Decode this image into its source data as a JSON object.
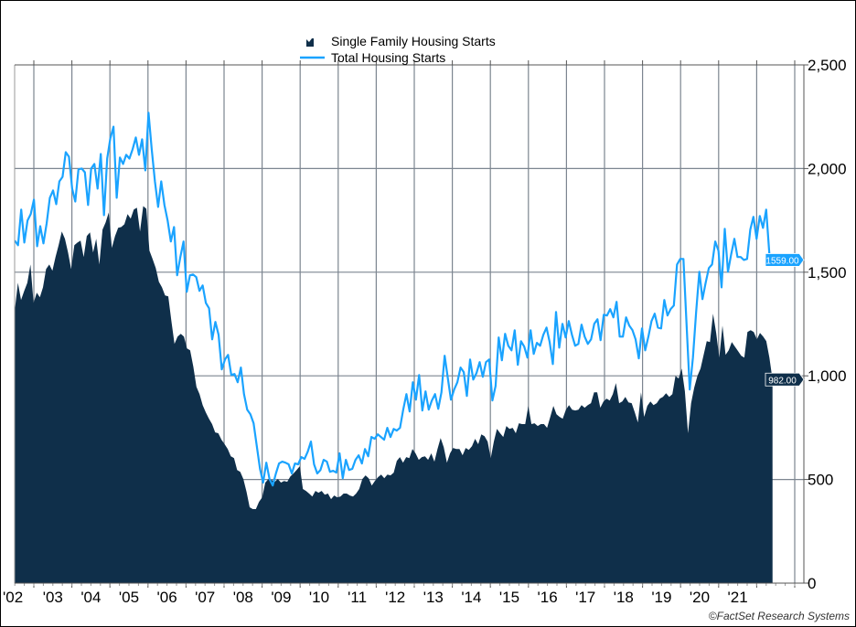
{
  "chart_data": {
    "type": "area+line",
    "title": "",
    "xlabel": "",
    "ylabel": "",
    "x_start": "2002-07",
    "x_end": "2022-06",
    "frequency": "monthly",
    "x_tick_labels": [
      "'02",
      "'03",
      "'04",
      "'05",
      "'06",
      "'07",
      "'08",
      "'09",
      "'10",
      "'11",
      "'12",
      "'13",
      "'14",
      "'15",
      "'16",
      "'17",
      "'18",
      "'19",
      "'20",
      "'21"
    ],
    "y_ticks": [
      0,
      500,
      1000,
      1500,
      2000,
      2500
    ],
    "y_tick_labels": [
      "0",
      "500",
      "1,000",
      "1,500",
      "2,000",
      "2,500"
    ],
    "ylim": [
      0,
      2500
    ],
    "y_axis_side": "right",
    "grid": true,
    "legend_position": "top-center",
    "series": [
      {
        "name": "Single Family Housing Starts",
        "type": "area",
        "color": "#0f2f4a",
        "last_value_label": "982.00",
        "values": [
          1317,
          1449,
          1366,
          1410,
          1449,
          1537,
          1352,
          1401,
          1379,
          1427,
          1515,
          1537,
          1507,
          1573,
          1630,
          1696,
          1661,
          1595,
          1515,
          1630,
          1643,
          1652,
          1573,
          1674,
          1692,
          1595,
          1661,
          1537,
          1705,
          1740,
          1788,
          1617,
          1674,
          1714,
          1718,
          1731,
          1780,
          1758,
          1802,
          1811,
          1696,
          1819,
          1806,
          1604,
          1564,
          1520,
          1454,
          1427,
          1388,
          1383,
          1264,
          1154,
          1189,
          1203,
          1189,
          1132,
          1123,
          1044,
          947,
          912,
          859,
          824,
          793,
          767,
          727,
          723,
          692,
          670,
          647,
          612,
          603,
          546,
          537,
          502,
          440,
          366,
          357,
          357,
          392,
          414,
          485,
          502,
          498,
          489,
          502,
          485,
          493,
          489,
          515,
          529,
          546,
          564,
          454,
          445,
          432,
          418,
          445,
          436,
          445,
          427,
          432,
          405,
          423,
          414,
          418,
          432,
          432,
          423,
          418,
          432,
          454,
          502,
          520,
          506,
          471,
          493,
          511,
          524,
          506,
          524,
          520,
          533,
          590,
          608,
          581,
          608,
          603,
          647,
          626,
          595,
          608,
          612,
          595,
          626,
          586,
          647,
          700,
          656,
          581,
          626,
          652,
          647,
          647,
          617,
          652,
          643,
          661,
          696,
          670,
          718,
          709,
          683,
          603,
          683,
          744,
          723,
          705,
          758,
          744,
          749,
          723,
          771,
          767,
          767,
          855,
          767,
          771,
          758,
          767,
          767,
          749,
          802,
          855,
          815,
          802,
          793,
          837,
          859,
          837,
          833,
          837,
          859,
          846,
          859,
          868,
          920,
          920,
          846,
          876,
          890,
          881,
          912,
          965,
          868,
          876,
          898,
          872,
          868,
          824,
          775,
          920,
          802,
          855,
          876,
          859,
          868,
          890,
          898,
          916,
          898,
          912,
          1000,
          987,
          1035,
          925,
          723,
          868,
          943,
          1000,
          1035,
          1101,
          1167,
          1163,
          1300,
          1207,
          1088,
          1242,
          1101,
          1123,
          1163,
          1141,
          1119,
          1097,
          1088,
          1211,
          1220,
          1211,
          1176,
          1207,
          1189,
          1167,
          1088,
          982
        ]
      },
      {
        "name": "Total Housing Starts",
        "type": "line",
        "color": "#1aa3ff",
        "last_value_label": "1559.00",
        "values": [
          1652,
          1630,
          1802,
          1643,
          1749,
          1780,
          1850,
          1625,
          1722,
          1639,
          1735,
          1859,
          1894,
          1828,
          1938,
          1960,
          2079,
          2057,
          1903,
          1841,
          1996,
          2000,
          1982,
          1824,
          2000,
          2022,
          1903,
          2070,
          1775,
          2048,
          2145,
          2202,
          1859,
          2053,
          2022,
          2066,
          2048,
          2093,
          2150,
          2066,
          2141,
          1991,
          2269,
          2093,
          1938,
          1815,
          1938,
          1824,
          1749,
          1648,
          1718,
          1485,
          1573,
          1648,
          1405,
          1485,
          1489,
          1476,
          1410,
          1436,
          1352,
          1326,
          1176,
          1260,
          1198,
          1031,
          1079,
          1101,
          1004,
          1009,
          969,
          1040,
          912,
          837,
          815,
          771,
          661,
          551,
          485,
          581,
          502,
          471,
          529,
          577,
          586,
          581,
          573,
          529,
          577,
          573,
          608,
          599,
          634,
          683,
          573,
          529,
          546,
          595,
          586,
          537,
          542,
          533,
          626,
          506,
          595,
          546,
          551,
          595,
          617,
          577,
          647,
          612,
          705,
          696,
          718,
          705,
          692,
          749,
          705,
          744,
          736,
          749,
          837,
          912,
          828,
          969,
          885,
          1004,
          833,
          925,
          837,
          881,
          912,
          841,
          920,
          1097,
          991,
          885,
          934,
          969,
          1040,
          1018,
          903,
          1079,
          982,
          1013,
          1066,
          995,
          1066,
          1079,
          881,
          951,
          1185,
          1075,
          1203,
          1145,
          1123,
          1220,
          1053,
          1167,
          1141,
          1088,
          1220,
          1106,
          1159,
          1145,
          1198,
          1233,
          1163,
          1057,
          1308,
          1136,
          1251,
          1185,
          1264,
          1198,
          1145,
          1154,
          1247,
          1189,
          1154,
          1176,
          1251,
          1273,
          1172,
          1295,
          1291,
          1322,
          1282,
          1357,
          1189,
          1189,
          1282,
          1242,
          1220,
          1176,
          1084,
          1229,
          1123,
          1189,
          1264,
          1300,
          1233,
          1229,
          1366,
          1291,
          1322,
          1339,
          1537,
          1564,
          1564,
          1251,
          934,
          1088,
          1308,
          1502,
          1370,
          1449,
          1520,
          1537,
          1648,
          1604,
          1427,
          1709,
          1502,
          1586,
          1661,
          1573,
          1573,
          1559,
          1564,
          1705,
          1767,
          1661,
          1771,
          1714,
          1802,
          1586,
          1559
        ]
      }
    ],
    "credit": "©FactSet Research Systems"
  }
}
